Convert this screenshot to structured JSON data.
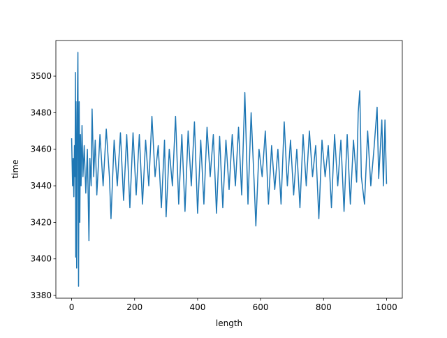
{
  "chart_data": {
    "type": "line",
    "xlabel": "length",
    "ylabel": "time",
    "x": [
      0,
      3,
      5,
      7,
      9,
      11,
      12,
      13,
      14,
      16,
      18,
      20,
      22,
      24,
      26,
      28,
      30,
      33,
      36,
      40,
      45,
      50,
      55,
      58,
      62,
      65,
      70,
      75,
      80,
      90,
      100,
      110,
      120,
      125,
      135,
      145,
      155,
      165,
      175,
      185,
      195,
      205,
      215,
      225,
      235,
      245,
      255,
      265,
      275,
      285,
      295,
      300,
      310,
      320,
      330,
      340,
      350,
      360,
      370,
      380,
      390,
      400,
      410,
      420,
      430,
      440,
      450,
      460,
      470,
      480,
      490,
      500,
      510,
      520,
      530,
      540,
      550,
      560,
      570,
      580,
      585,
      595,
      605,
      615,
      625,
      635,
      645,
      655,
      665,
      675,
      685,
      695,
      705,
      715,
      725,
      735,
      745,
      755,
      765,
      775,
      785,
      795,
      805,
      815,
      825,
      835,
      845,
      855,
      865,
      875,
      885,
      895,
      905,
      910,
      915,
      920,
      930,
      940,
      950,
      960,
      970,
      975,
      985,
      990,
      995,
      1000
    ],
    "series": [
      {
        "color": "#1f77b4",
        "values": [
          3466,
          3440,
          3455,
          3434,
          3462,
          3445,
          3502,
          3401,
          3486,
          3395,
          3480,
          3513,
          3385,
          3486,
          3420,
          3468,
          3440,
          3473,
          3445,
          3462,
          3436,
          3460,
          3410,
          3455,
          3440,
          3482,
          3445,
          3465,
          3435,
          3468,
          3440,
          3471,
          3445,
          3422,
          3465,
          3440,
          3469,
          3432,
          3468,
          3428,
          3469,
          3435,
          3468,
          3430,
          3465,
          3440,
          3478,
          3445,
          3462,
          3428,
          3465,
          3423,
          3460,
          3440,
          3478,
          3430,
          3468,
          3426,
          3470,
          3440,
          3475,
          3425,
          3465,
          3430,
          3472,
          3445,
          3468,
          3425,
          3467,
          3428,
          3465,
          3438,
          3468,
          3440,
          3472,
          3435,
          3491,
          3430,
          3480,
          3440,
          3418,
          3460,
          3445,
          3470,
          3430,
          3462,
          3438,
          3460,
          3430,
          3475,
          3440,
          3465,
          3435,
          3460,
          3428,
          3468,
          3440,
          3470,
          3445,
          3462,
          3422,
          3465,
          3445,
          3462,
          3428,
          3468,
          3440,
          3465,
          3426,
          3468,
          3430,
          3465,
          3442,
          3480,
          3492,
          3445,
          3430,
          3470,
          3440,
          3460,
          3483,
          3444,
          3476,
          3440,
          3476,
          3441
        ]
      }
    ],
    "xlim": [
      -50,
      1050
    ],
    "ylim": [
      3378.5,
      3519.5
    ],
    "xticks": [
      0,
      200,
      400,
      600,
      800,
      1000
    ],
    "yticks": [
      3380,
      3400,
      3420,
      3440,
      3460,
      3480,
      3500
    ]
  }
}
